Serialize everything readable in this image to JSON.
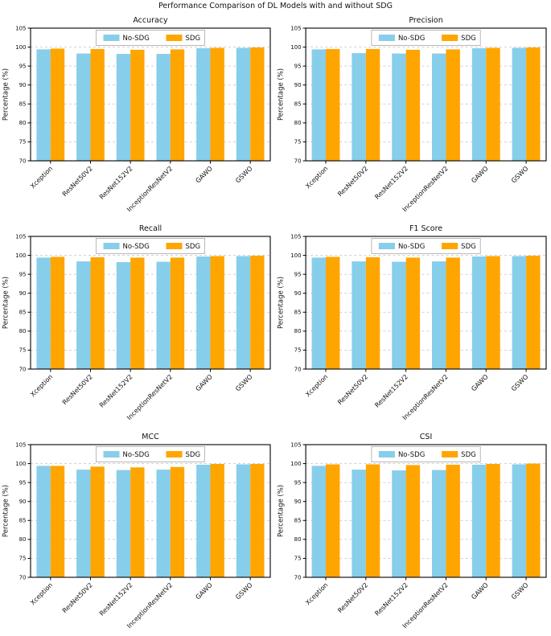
{
  "figure_title": "Performance Comparison of DL Models with and without SDG",
  "legend": {
    "labels": [
      "No-SDG",
      "SDG"
    ]
  },
  "colors": {
    "no_sdg": "#87CEEB",
    "sdg": "#FFA500",
    "grid": "#cccccc",
    "spine": "#000000",
    "legend_border": "#b9b9b9",
    "background": "#ffffff"
  },
  "axis": {
    "ylabel": "Percentage (%)",
    "ylim": [
      70,
      105
    ],
    "yticks": [
      70,
      75,
      80,
      85,
      90,
      95,
      100,
      105
    ]
  },
  "categories": [
    "Xception",
    "ResNet50V2",
    "ResNet152V2",
    "InceptionResNetV2",
    "GAWO",
    "GSWO"
  ],
  "chart_data": [
    {
      "type": "bar",
      "title": "Accuracy",
      "ylabel": "Percentage (%)",
      "ylim": [
        70,
        105
      ],
      "grid": true,
      "legend_position": "upper center",
      "categories": [
        "Xception",
        "ResNet50V2",
        "ResNet152V2",
        "InceptionResNetV2",
        "GAWO",
        "GSWO"
      ],
      "series": [
        {
          "name": "No-SDG",
          "values": [
            99.4,
            98.3,
            98.2,
            98.2,
            99.7,
            99.8
          ]
        },
        {
          "name": "SDG",
          "values": [
            99.6,
            99.5,
            99.3,
            99.4,
            99.8,
            99.9
          ]
        }
      ]
    },
    {
      "type": "bar",
      "title": "Precision",
      "ylabel": "Percentage (%)",
      "ylim": [
        70,
        105
      ],
      "grid": true,
      "legend_position": "upper center",
      "categories": [
        "Xception",
        "ResNet50V2",
        "ResNet152V2",
        "InceptionResNetV2",
        "GAWO",
        "GSWO"
      ],
      "series": [
        {
          "name": "No-SDG",
          "values": [
            99.4,
            98.4,
            98.3,
            98.3,
            99.7,
            99.8
          ]
        },
        {
          "name": "SDG",
          "values": [
            99.5,
            99.5,
            99.3,
            99.4,
            99.8,
            99.9
          ]
        }
      ]
    },
    {
      "type": "bar",
      "title": "Recall",
      "ylabel": "Percentage (%)",
      "ylim": [
        70,
        105
      ],
      "grid": true,
      "legend_position": "upper center",
      "categories": [
        "Xception",
        "ResNet50V2",
        "ResNet152V2",
        "InceptionResNetV2",
        "GAWO",
        "GSWO"
      ],
      "series": [
        {
          "name": "No-SDG",
          "values": [
            99.4,
            98.4,
            98.2,
            98.3,
            99.7,
            99.8
          ]
        },
        {
          "name": "SDG",
          "values": [
            99.6,
            99.5,
            99.4,
            99.4,
            99.8,
            99.9
          ]
        }
      ]
    },
    {
      "type": "bar",
      "title": "F1 Score",
      "ylabel": "Percentage (%)",
      "ylim": [
        70,
        105
      ],
      "grid": true,
      "legend_position": "upper center",
      "categories": [
        "Xception",
        "ResNet50V2",
        "ResNet152V2",
        "InceptionResNetV2",
        "GAWO",
        "GSWO"
      ],
      "series": [
        {
          "name": "No-SDG",
          "values": [
            99.4,
            98.4,
            98.3,
            98.4,
            99.7,
            99.8
          ]
        },
        {
          "name": "SDG",
          "values": [
            99.6,
            99.5,
            99.4,
            99.4,
            99.8,
            99.9
          ]
        }
      ]
    },
    {
      "type": "bar",
      "title": "MCC",
      "ylabel": "Percentage (%)",
      "ylim": [
        70,
        105
      ],
      "grid": true,
      "legend_position": "upper center",
      "categories": [
        "Xception",
        "ResNet50V2",
        "ResNet152V2",
        "InceptionResNetV2",
        "GAWO",
        "GSWO"
      ],
      "series": [
        {
          "name": "No-SDG",
          "values": [
            99.4,
            98.4,
            98.3,
            98.4,
            99.7,
            99.8
          ]
        },
        {
          "name": "SDG",
          "values": [
            99.4,
            99.2,
            99.0,
            99.1,
            99.9,
            99.9
          ]
        }
      ]
    },
    {
      "type": "bar",
      "title": "CSI",
      "ylabel": "Percentage (%)",
      "ylim": [
        70,
        105
      ],
      "grid": true,
      "legend_position": "upper center",
      "categories": [
        "Xception",
        "ResNet50V2",
        "ResNet152V2",
        "InceptionResNetV2",
        "GAWO",
        "GSWO"
      ],
      "series": [
        {
          "name": "No-SDG",
          "values": [
            99.4,
            98.4,
            98.2,
            98.3,
            99.7,
            99.8
          ]
        },
        {
          "name": "SDG",
          "values": [
            99.8,
            99.8,
            99.6,
            99.7,
            99.9,
            100.0
          ]
        }
      ]
    }
  ]
}
